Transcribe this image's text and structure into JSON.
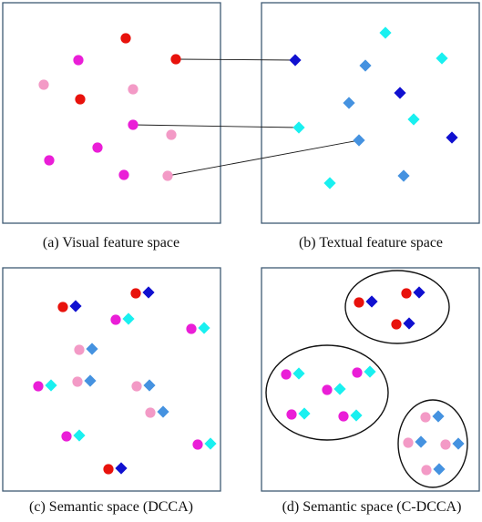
{
  "colors": {
    "red": "#e8120c",
    "magenta": "#ea1ed7",
    "pink": "#f39ac6",
    "cyan": "#19f0f0",
    "blue": "#4592e0",
    "navy": "#1010d0",
    "frame": "#3f5a74"
  },
  "marker_shapes": {
    "visual": "circle",
    "textual": "diamond"
  },
  "panels": [
    {
      "id": "a",
      "caption": "(a) Visual feature space",
      "visual": [
        "red",
        "magenta",
        "red",
        "pink",
        "red",
        "pink",
        "magenta",
        "pink",
        "magenta",
        "magenta",
        "magenta",
        "pink"
      ],
      "textual": [],
      "pairs": [],
      "clusters": 0
    },
    {
      "id": "b",
      "caption": "(b) Textual feature space",
      "visual": [],
      "textual": [
        "cyan",
        "cyan",
        "navy",
        "blue",
        "navy",
        "blue",
        "cyan",
        "cyan",
        "blue",
        "navy",
        "blue",
        "cyan"
      ],
      "pairs": [],
      "clusters": 0
    },
    {
      "id": "c",
      "caption": "(c) Semantic space (DCCA)",
      "visual": [],
      "textual": [],
      "pairs": [
        [
          "red",
          "navy"
        ],
        [
          "red",
          "navy"
        ],
        [
          "magenta",
          "cyan"
        ],
        [
          "magenta",
          "cyan"
        ],
        [
          "pink",
          "blue"
        ],
        [
          "pink",
          "blue"
        ],
        [
          "magenta",
          "cyan"
        ],
        [
          "pink",
          "blue"
        ],
        [
          "pink",
          "blue"
        ],
        [
          "magenta",
          "cyan"
        ],
        [
          "magenta",
          "cyan"
        ],
        [
          "red",
          "navy"
        ]
      ],
      "clusters": 0
    },
    {
      "id": "d",
      "caption": "(d) Semantic space (C-DCCA)",
      "visual": [],
      "textual": [],
      "pairs": [
        [
          "red",
          "navy"
        ],
        [
          "red",
          "navy"
        ],
        [
          "red",
          "navy"
        ],
        [
          "magenta",
          "cyan"
        ],
        [
          "magenta",
          "cyan"
        ],
        [
          "magenta",
          "cyan"
        ],
        [
          "magenta",
          "cyan"
        ],
        [
          "magenta",
          "cyan"
        ],
        [
          "pink",
          "blue"
        ],
        [
          "pink",
          "blue"
        ],
        [
          "pink",
          "blue"
        ],
        [
          "pink",
          "blue"
        ]
      ],
      "clusters": 3
    }
  ],
  "cross_modal_links": 3
}
